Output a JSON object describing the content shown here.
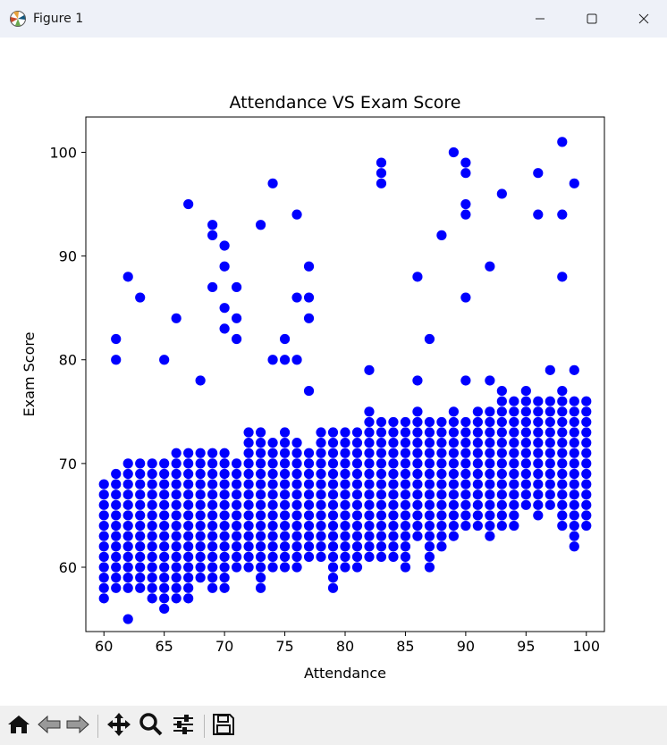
{
  "window": {
    "title": "Figure 1",
    "icons": {
      "app": "matplotlib-icon",
      "minimize": "minimize-icon",
      "maximize": "maximize-icon",
      "close": "close-icon"
    }
  },
  "toolbar": {
    "buttons": [
      {
        "name": "home-button",
        "icon": "home-icon"
      },
      {
        "name": "back-button",
        "icon": "back-arrow-icon"
      },
      {
        "name": "forward-button",
        "icon": "forward-arrow-icon"
      },
      {
        "name": "pan-button",
        "icon": "pan-move-icon"
      },
      {
        "name": "zoom-button",
        "icon": "zoom-magnifier-icon"
      },
      {
        "name": "configure-subplots-button",
        "icon": "sliders-icon"
      },
      {
        "name": "save-button",
        "icon": "save-disk-icon"
      }
    ]
  },
  "chart_data": {
    "type": "scatter",
    "title": "Attendance VS Exam Score",
    "xlabel": "Attendance",
    "ylabel": "Exam Score",
    "xlim": [
      58.5,
      101.5
    ],
    "ylim": [
      53.8,
      103.4
    ],
    "xticks": [
      60,
      65,
      70,
      75,
      80,
      85,
      90,
      95,
      100
    ],
    "yticks": [
      60,
      70,
      80,
      90,
      100
    ],
    "marker_color": "#0000ff",
    "grid": false,
    "legend": "none",
    "dense_band": [
      [
        60,
        57,
        68
      ],
      [
        61,
        58,
        69
      ],
      [
        62,
        58,
        70
      ],
      [
        63,
        58,
        70
      ],
      [
        64,
        57,
        70
      ],
      [
        65,
        56,
        70
      ],
      [
        66,
        57,
        71
      ],
      [
        67,
        57,
        71
      ],
      [
        68,
        59,
        71
      ],
      [
        69,
        58,
        71
      ],
      [
        70,
        58,
        71
      ],
      [
        71,
        60,
        70
      ],
      [
        72,
        60,
        73
      ],
      [
        73,
        58,
        73
      ],
      [
        74,
        60,
        72
      ],
      [
        75,
        60,
        73
      ],
      [
        76,
        60,
        72
      ],
      [
        77,
        61,
        71
      ],
      [
        78,
        61,
        73
      ],
      [
        79,
        58,
        73
      ],
      [
        80,
        60,
        73
      ],
      [
        81,
        60,
        73
      ],
      [
        82,
        61,
        74
      ],
      [
        83,
        61,
        74
      ],
      [
        84,
        61,
        74
      ],
      [
        85,
        60,
        74
      ],
      [
        86,
        63,
        75
      ],
      [
        87,
        60,
        74
      ],
      [
        88,
        62,
        74
      ],
      [
        89,
        63,
        75
      ],
      [
        90,
        64,
        74
      ],
      [
        91,
        64,
        75
      ],
      [
        92,
        63,
        75
      ],
      [
        93,
        64,
        76
      ],
      [
        94,
        64,
        76
      ],
      [
        95,
        66,
        76
      ],
      [
        96,
        65,
        76
      ],
      [
        97,
        66,
        76
      ],
      [
        98,
        64,
        76
      ],
      [
        99,
        62,
        76
      ],
      [
        100,
        64,
        76
      ]
    ],
    "outliers": [
      [
        60,
        57
      ],
      [
        62,
        55
      ],
      [
        65,
        56
      ],
      [
        61,
        82
      ],
      [
        61,
        80
      ],
      [
        62,
        88
      ],
      [
        63,
        86
      ],
      [
        65,
        80
      ],
      [
        66,
        84
      ],
      [
        67,
        95
      ],
      [
        68,
        78
      ],
      [
        69,
        93
      ],
      [
        69,
        92
      ],
      [
        69,
        87
      ],
      [
        70,
        91
      ],
      [
        70,
        89
      ],
      [
        70,
        85
      ],
      [
        70,
        83
      ],
      [
        71,
        87
      ],
      [
        71,
        84
      ],
      [
        71,
        82
      ],
      [
        73,
        93
      ],
      [
        73,
        58
      ],
      [
        74,
        97
      ],
      [
        74,
        80
      ],
      [
        75,
        82
      ],
      [
        75,
        80
      ],
      [
        76,
        94
      ],
      [
        76,
        86
      ],
      [
        76,
        80
      ],
      [
        77,
        89
      ],
      [
        77,
        86
      ],
      [
        77,
        84
      ],
      [
        77,
        77
      ],
      [
        79,
        58
      ],
      [
        82,
        79
      ],
      [
        82,
        75
      ],
      [
        83,
        99
      ],
      [
        83,
        98
      ],
      [
        83,
        97
      ],
      [
        86,
        88
      ],
      [
        86,
        78
      ],
      [
        87,
        82
      ],
      [
        87,
        60
      ],
      [
        88,
        92
      ],
      [
        89,
        100
      ],
      [
        90,
        99
      ],
      [
        90,
        98
      ],
      [
        90,
        95
      ],
      [
        90,
        94
      ],
      [
        90,
        86
      ],
      [
        90,
        78
      ],
      [
        92,
        89
      ],
      [
        92,
        78
      ],
      [
        92,
        63
      ],
      [
        93,
        96
      ],
      [
        93,
        77
      ],
      [
        95,
        77
      ],
      [
        96,
        98
      ],
      [
        96,
        94
      ],
      [
        97,
        79
      ],
      [
        98,
        101
      ],
      [
        98,
        94
      ],
      [
        98,
        88
      ],
      [
        98,
        77
      ],
      [
        99,
        97
      ],
      [
        99,
        79
      ],
      [
        99,
        62
      ]
    ]
  }
}
